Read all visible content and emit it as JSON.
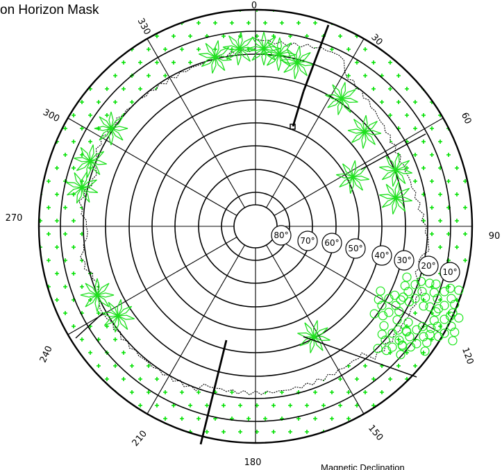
{
  "title": "on Horizon Mask",
  "footer_note": "Magnetic Declination",
  "azimuth_labels": [
    "0",
    "30",
    "60",
    "90",
    "120",
    "150",
    "180",
    "210",
    "240",
    "270",
    "300",
    "330"
  ],
  "altitude_labels": [
    "10°",
    "20°",
    "30°",
    "40°",
    "50°",
    "60°",
    "70°",
    "80°"
  ],
  "colors": {
    "line": "#000000",
    "vegetation": "#1fe01f",
    "sky_marks": "#00e000",
    "background": "#ffffff"
  },
  "diagram": {
    "type": "sun-path horizon mask (polar azimuth / altitude chart)",
    "altitude_ring_step_deg": 10,
    "azimuth_spoke_step_deg": 30,
    "obstructions": [
      "tree canopy along horizon",
      "bushes to the south-east",
      "building outline"
    ]
  }
}
